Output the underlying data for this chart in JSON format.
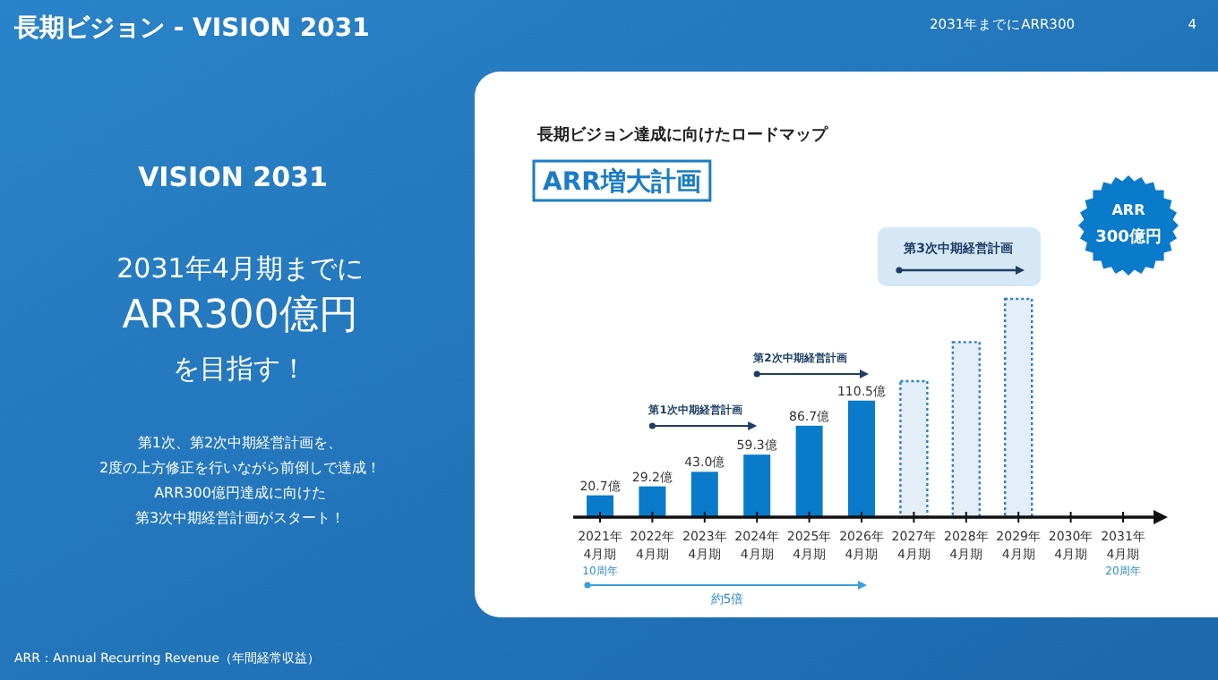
{
  "chart_data": {
    "type": "bar",
    "title": "長期ビジョン - VISION 2031",
    "subtitle": "長期ビジョン達成に向けたロードマップ",
    "categories": [
      "2021年4月期",
      "2022年4月期",
      "2023年4月期",
      "2024年4月期",
      "2025年4月期",
      "2026年4月期",
      "2027年4月期",
      "2028年4月期",
      "2029年4月期",
      "2030年4月期",
      "2031年4月期"
    ],
    "series": [
      {
        "color": "#0a7acb",
        "line_style": "solid",
        "values": [
          20.7,
          29.2,
          43.0,
          59.3,
          86.7,
          110.5,
          null,
          null,
          null,
          null,
          null
        ],
        "value_labels": [
          "20.7億",
          "29.2億",
          "43.0億",
          "59.3億",
          "86.7億",
          "110.5億",
          null,
          null,
          null,
          null,
          null
        ]
      },
      {
        "color": "#2f7fc8",
        "line_style": "dotted",
        "values": [
          null,
          null,
          null,
          null,
          null,
          null,
          129,
          166,
          207,
          null,
          null
        ]
      }
    ],
    "annotations": [
      "2031年までにARR300",
      "4",
      "VISION 2031",
      "2031年4月期までに",
      "ARR300億円",
      "を目指す！",
      "第1次、第2次中期経営計画を、",
      "2度の上方修正を行いながら前倒しで達成！",
      "ARR300億円達成に向けた",
      "第3次中期経営計画がスタート！",
      "ARR：Annual Recurring Revenue（年間経常収益）",
      "ARR増大計画",
      "第1次中期経営計画",
      "第2次中期経営計画",
      "第3次中期経営計画",
      "10周年",
      "20周年",
      "約5倍",
      "ARR300億円"
    ]
  }
}
